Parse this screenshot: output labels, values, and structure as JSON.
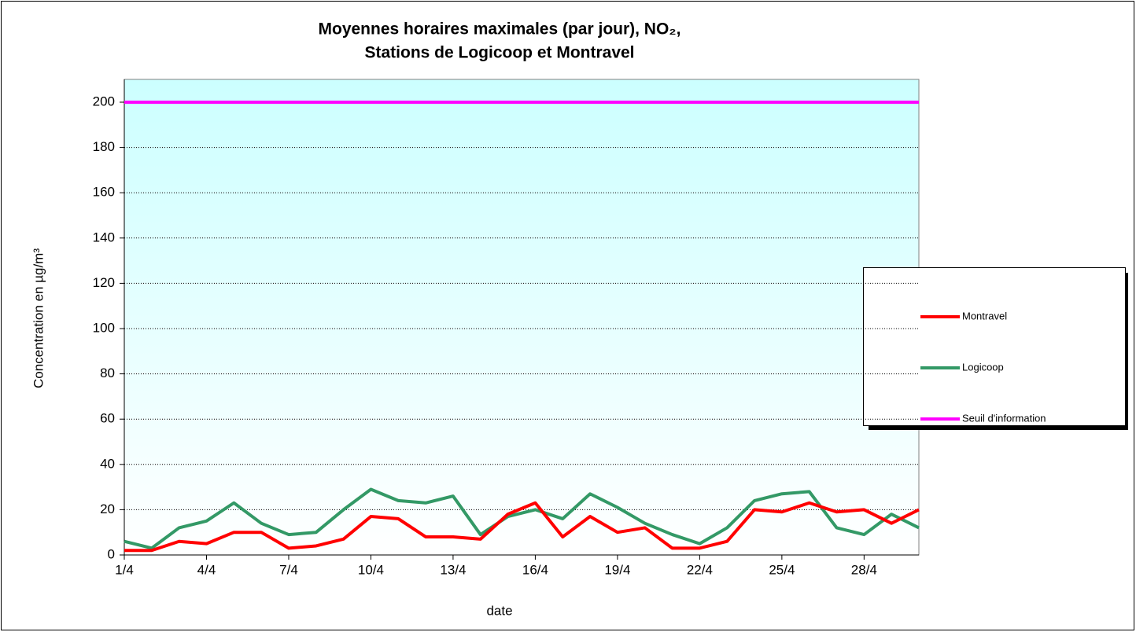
{
  "chart_data": {
    "type": "line",
    "title": [
      "Moyennes horaires maximales (par jour), NO₂,",
      "Stations de Logicoop et Montravel"
    ],
    "x_label": "date",
    "y_label": "Concentration en µg/m³",
    "categories": [
      "1/4",
      null,
      null,
      "4/4",
      null,
      null,
      "7/4",
      null,
      null,
      "10/4",
      null,
      null,
      "13/4",
      null,
      null,
      "16/4",
      null,
      null,
      "19/4",
      null,
      null,
      "22/4",
      null,
      null,
      "25/4",
      null,
      null,
      "28/4",
      null,
      null
    ],
    "series": [
      {
        "name": "Montravel",
        "color": "#ff0000",
        "values": [
          2,
          2,
          6,
          5,
          10,
          10,
          3,
          4,
          7,
          17,
          16,
          8,
          8,
          7,
          18,
          23,
          8,
          17,
          10,
          12,
          3,
          3,
          6,
          20,
          19,
          23,
          19,
          20,
          14,
          20
        ]
      },
      {
        "name": "Logicoop",
        "color": "#339966",
        "values": [
          6,
          3,
          12,
          15,
          23,
          14,
          9,
          10,
          20,
          29,
          24,
          23,
          26,
          9,
          17,
          20,
          16,
          27,
          21,
          14,
          9,
          5,
          12,
          24,
          27,
          28,
          12,
          9,
          18,
          12
        ]
      },
      {
        "name": "Seuil d'information",
        "color": "#ff00ff",
        "values": [
          200,
          200,
          200,
          200,
          200,
          200,
          200,
          200,
          200,
          200,
          200,
          200,
          200,
          200,
          200,
          200,
          200,
          200,
          200,
          200,
          200,
          200,
          200,
          200,
          200,
          200,
          200,
          200,
          200,
          200
        ]
      }
    ],
    "ylim": [
      0,
      200
    ],
    "yticks": [
      0,
      20,
      40,
      60,
      80,
      100,
      120,
      140,
      160,
      180,
      200
    ],
    "grid": true,
    "legend": "right"
  }
}
